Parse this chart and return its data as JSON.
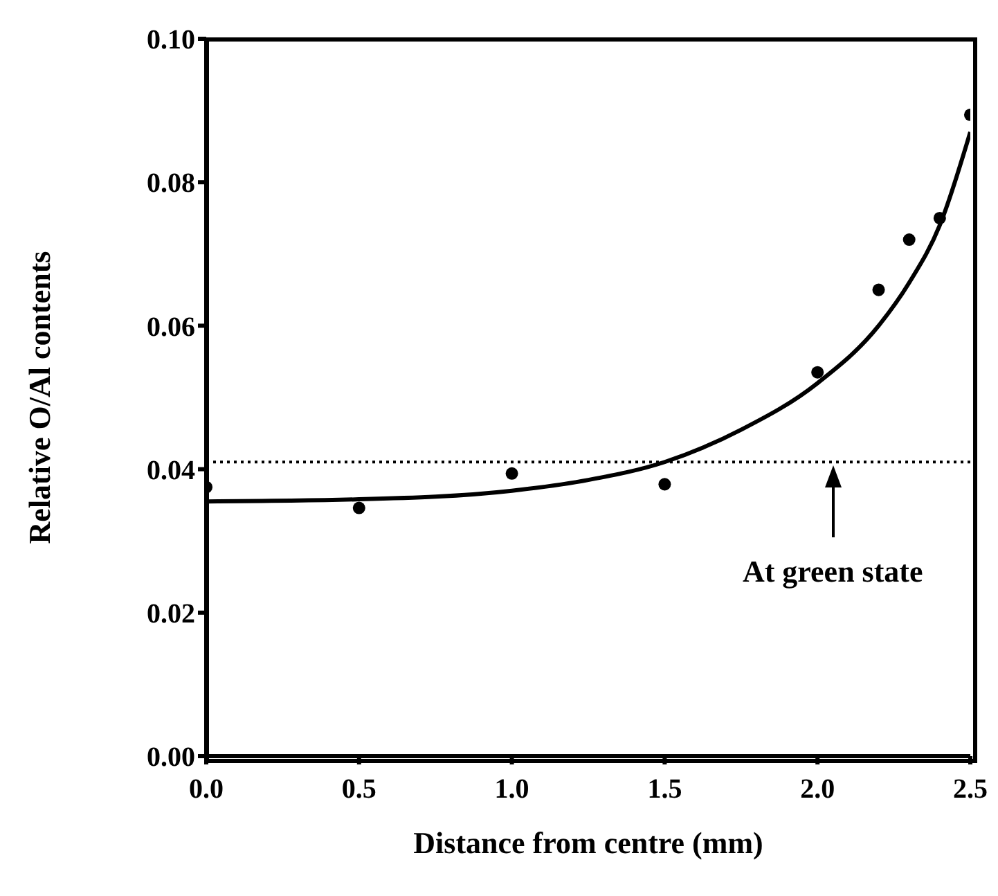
{
  "chart_data": {
    "type": "scatter",
    "xlabel": "Distance from centre (mm)",
    "ylabel": "Relative O/Al contents",
    "xlim": [
      0,
      2.5
    ],
    "xticks": [
      {
        "value": 0,
        "label": "0.0"
      },
      0.5,
      {
        "value": 1,
        "label": "1.0"
      },
      1.5,
      {
        "value": 2,
        "label": "2.0"
      },
      2.5
    ],
    "ylim": [
      0,
      0.1
    ],
    "yticks": [
      {
        "value": 0,
        "label": "0.00"
      },
      0.02,
      0.04,
      0.06,
      0.08,
      {
        "value": 0.1,
        "label": "0.10"
      }
    ],
    "x": [
      0,
      0.5,
      1.0,
      1.5,
      2.0,
      2.2,
      2.3,
      2.4,
      2.5
    ],
    "series": [
      {
        "color": "#000000",
        "marker": "circle",
        "values": [
          0.0375,
          0.0346,
          0.0394,
          0.0379,
          0.0535,
          0.065,
          0.072,
          0.075,
          0.0894
        ]
      },
      {
        "type": "line",
        "color": "#000000",
        "marker": "none",
        "line_style": "solid",
        "x": [
          0,
          0.5,
          1.0,
          1.25,
          1.5,
          1.75,
          2.0,
          2.2,
          2.3,
          2.4,
          2.5
        ],
        "values": [
          0.0355,
          0.0358,
          0.037,
          0.0385,
          0.041,
          0.0455,
          0.052,
          0.06,
          0.066,
          0.074,
          0.087
        ]
      }
    ],
    "ref_lines": [
      {
        "axis": "y",
        "value": 0.041,
        "color": "#000000",
        "line_style": "dotted"
      }
    ],
    "annotations": [
      {
        "text": "At green state",
        "x": 2.05,
        "y": 0.041
      }
    ],
    "grid": false,
    "legend": false
  }
}
